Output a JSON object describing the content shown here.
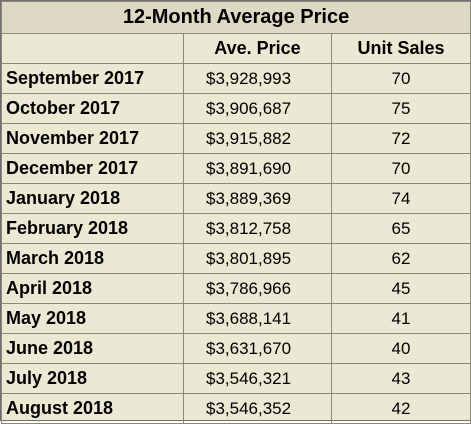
{
  "title": "12-Month Average Price",
  "headers": {
    "month": "",
    "price": "Ave. Price",
    "sales": "Unit Sales"
  },
  "rows": [
    {
      "month": "September 2017",
      "price": "$3,928,993",
      "sales": "70"
    },
    {
      "month": "October 2017",
      "price": "$3,906,687",
      "sales": "75"
    },
    {
      "month": "November 2017",
      "price": "$3,915,882",
      "sales": "72"
    },
    {
      "month": "December 2017",
      "price": "$3,891,690",
      "sales": "70"
    },
    {
      "month": "January 2018",
      "price": "$3,889,369",
      "sales": "74"
    },
    {
      "month": "February 2018",
      "price": "$3,812,758",
      "sales": "65"
    },
    {
      "month": "March 2018",
      "price": "$3,801,895",
      "sales": "62"
    },
    {
      "month": "April 2018",
      "price": "$3,786,966",
      "sales": "45"
    },
    {
      "month": "May 2018",
      "price": "$3,688,141",
      "sales": "41"
    },
    {
      "month": "June 2018",
      "price": "$3,631,670",
      "sales": "40"
    },
    {
      "month": "July 2018",
      "price": "$3,546,321",
      "sales": "43"
    },
    {
      "month": "August 2018",
      "price": "$3,546,352",
      "sales": "42"
    }
  ],
  "colors": {
    "background": "#ebe9d3",
    "title_background": "#ddd9c4",
    "border": "#8a8a7a",
    "text": "#000000"
  }
}
